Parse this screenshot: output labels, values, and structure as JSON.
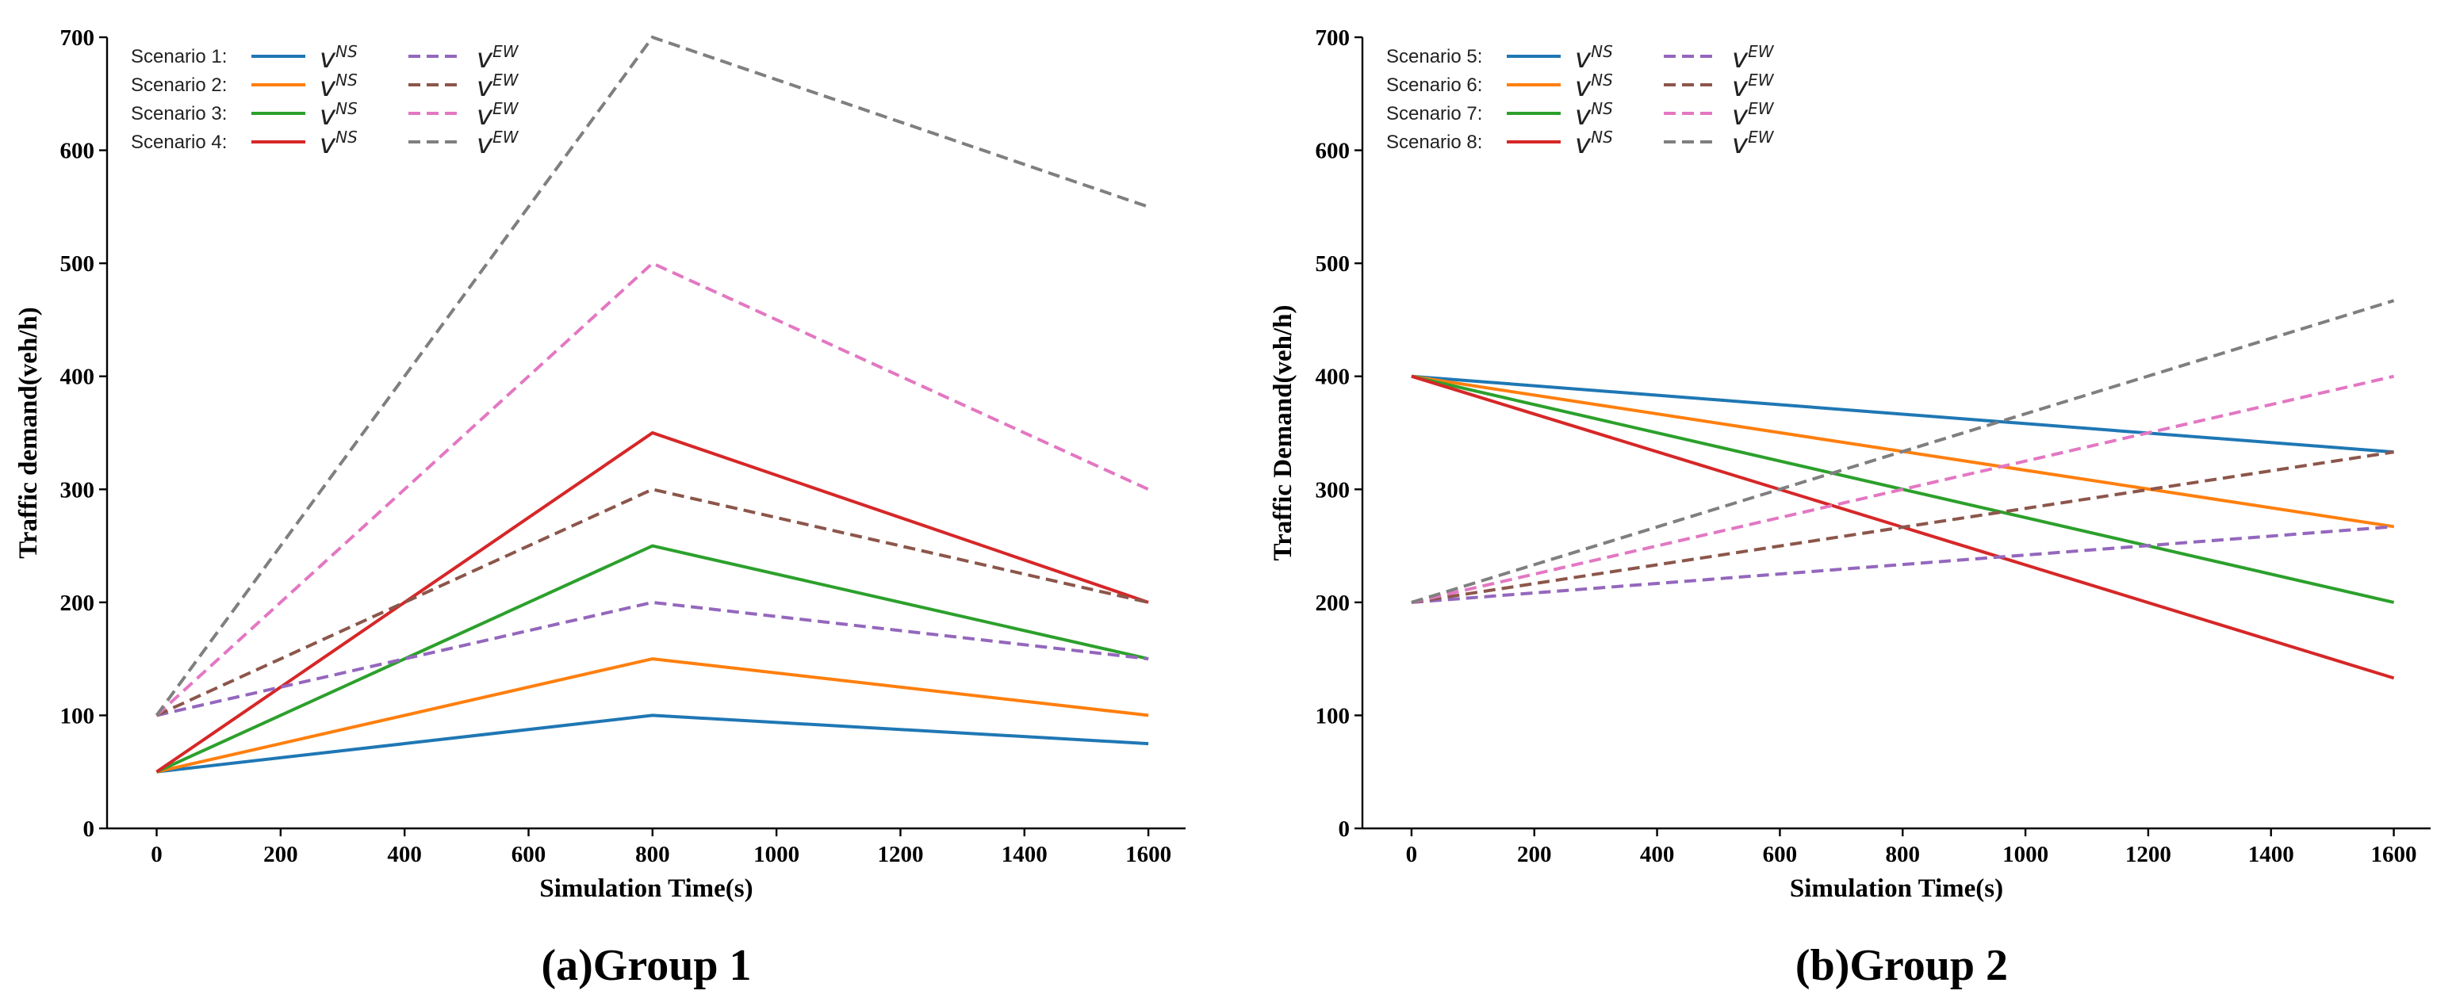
{
  "chart_data": [
    {
      "type": "line",
      "caption": "(a)Group 1",
      "xlabel": "Simulation Time(s)",
      "ylabel": "Traffic demand(veh/h)",
      "xlim": [
        -80,
        1660
      ],
      "ylim": [
        0,
        700
      ],
      "xticks": [
        "0",
        "200",
        "400",
        "600",
        "800",
        "1000",
        "1200",
        "1400",
        "1600"
      ],
      "yticks": [
        "0",
        "100",
        "200",
        "300",
        "400",
        "500",
        "600",
        "700"
      ],
      "legend_position": "top-left",
      "legend_rows": [
        {
          "label": "Scenario 1:",
          "ns_symbol": "v",
          "ns_sup": "NS",
          "ew_symbol": "v",
          "ew_sup": "EW"
        },
        {
          "label": "Scenario 2:",
          "ns_symbol": "v",
          "ns_sup": "NS",
          "ew_symbol": "v",
          "ew_sup": "EW"
        },
        {
          "label": "Scenario 3:",
          "ns_symbol": "v",
          "ns_sup": "NS",
          "ew_symbol": "v",
          "ew_sup": "EW"
        },
        {
          "label": "Scenario 4:",
          "ns_symbol": "v",
          "ns_sup": "NS",
          "ew_symbol": "v",
          "ew_sup": "EW"
        }
      ],
      "series": [
        {
          "key": "s1-ns",
          "style": "solid",
          "color": "#1f77b4",
          "x": [
            0,
            800,
            1600
          ],
          "y": [
            50,
            100,
            75
          ]
        },
        {
          "key": "s2-ns",
          "style": "solid",
          "color": "#ff7f0e",
          "x": [
            0,
            800,
            1600
          ],
          "y": [
            50,
            150,
            100
          ]
        },
        {
          "key": "s3-ns",
          "style": "solid",
          "color": "#2ca02c",
          "x": [
            0,
            800,
            1600
          ],
          "y": [
            50,
            250,
            150
          ]
        },
        {
          "key": "s4-ns",
          "style": "solid",
          "color": "#d62728",
          "x": [
            0,
            800,
            1600
          ],
          "y": [
            50,
            350,
            200
          ]
        },
        {
          "key": "s1-ew",
          "style": "dashed",
          "color": "#9467bd",
          "x": [
            0,
            800,
            1600
          ],
          "y": [
            100,
            200,
            150
          ]
        },
        {
          "key": "s2-ew",
          "style": "dashed",
          "color": "#8c564b",
          "x": [
            0,
            800,
            1600
          ],
          "y": [
            100,
            300,
            200
          ]
        },
        {
          "key": "s3-ew",
          "style": "dashed",
          "color": "#e377c2",
          "x": [
            0,
            800,
            1600
          ],
          "y": [
            100,
            500,
            300
          ]
        },
        {
          "key": "s4-ew",
          "style": "dashed",
          "color": "#7f7f7f",
          "x": [
            0,
            800,
            1600
          ],
          "y": [
            100,
            700,
            550
          ]
        }
      ]
    },
    {
      "type": "line",
      "caption": "(b)Group 2",
      "xlabel": "Simulation Time(s)",
      "ylabel": "Traffic Demand(veh/h)",
      "xlim": [
        -80,
        1660
      ],
      "ylim": [
        0,
        700
      ],
      "xticks": [
        "0",
        "200",
        "400",
        "600",
        "800",
        "1000",
        "1200",
        "1400",
        "1600"
      ],
      "yticks": [
        "0",
        "100",
        "200",
        "300",
        "400",
        "500",
        "600",
        "700"
      ],
      "legend_position": "top-left",
      "legend_rows": [
        {
          "label": "Scenario 5:",
          "ns_symbol": "v",
          "ns_sup": "NS",
          "ew_symbol": "v",
          "ew_sup": "EW"
        },
        {
          "label": "Scenario 6:",
          "ns_symbol": "v",
          "ns_sup": "NS",
          "ew_symbol": "v",
          "ew_sup": "EW"
        },
        {
          "label": "Scenario 7:",
          "ns_symbol": "v",
          "ns_sup": "NS",
          "ew_symbol": "v",
          "ew_sup": "EW"
        },
        {
          "label": "Scenario 8:",
          "ns_symbol": "v",
          "ns_sup": "NS",
          "ew_symbol": "v",
          "ew_sup": "EW"
        }
      ],
      "series": [
        {
          "key": "s5-ns",
          "style": "solid",
          "color": "#1f77b4",
          "x": [
            0,
            1600
          ],
          "y": [
            400,
            333
          ]
        },
        {
          "key": "s6-ns",
          "style": "solid",
          "color": "#ff7f0e",
          "x": [
            0,
            1600
          ],
          "y": [
            400,
            267
          ]
        },
        {
          "key": "s7-ns",
          "style": "solid",
          "color": "#2ca02c",
          "x": [
            0,
            1600
          ],
          "y": [
            400,
            200
          ]
        },
        {
          "key": "s8-ns",
          "style": "solid",
          "color": "#d62728",
          "x": [
            0,
            1600
          ],
          "y": [
            400,
            133
          ]
        },
        {
          "key": "s5-ew",
          "style": "dashed",
          "color": "#9467bd",
          "x": [
            0,
            1600
          ],
          "y": [
            200,
            267
          ]
        },
        {
          "key": "s6-ew",
          "style": "dashed",
          "color": "#8c564b",
          "x": [
            0,
            1600
          ],
          "y": [
            200,
            333
          ]
        },
        {
          "key": "s7-ew",
          "style": "dashed",
          "color": "#e377c2",
          "x": [
            0,
            1600
          ],
          "y": [
            200,
            400
          ]
        },
        {
          "key": "s8-ew",
          "style": "dashed",
          "color": "#7f7f7f",
          "x": [
            0,
            1600
          ],
          "y": [
            200,
            467
          ]
        }
      ]
    }
  ]
}
